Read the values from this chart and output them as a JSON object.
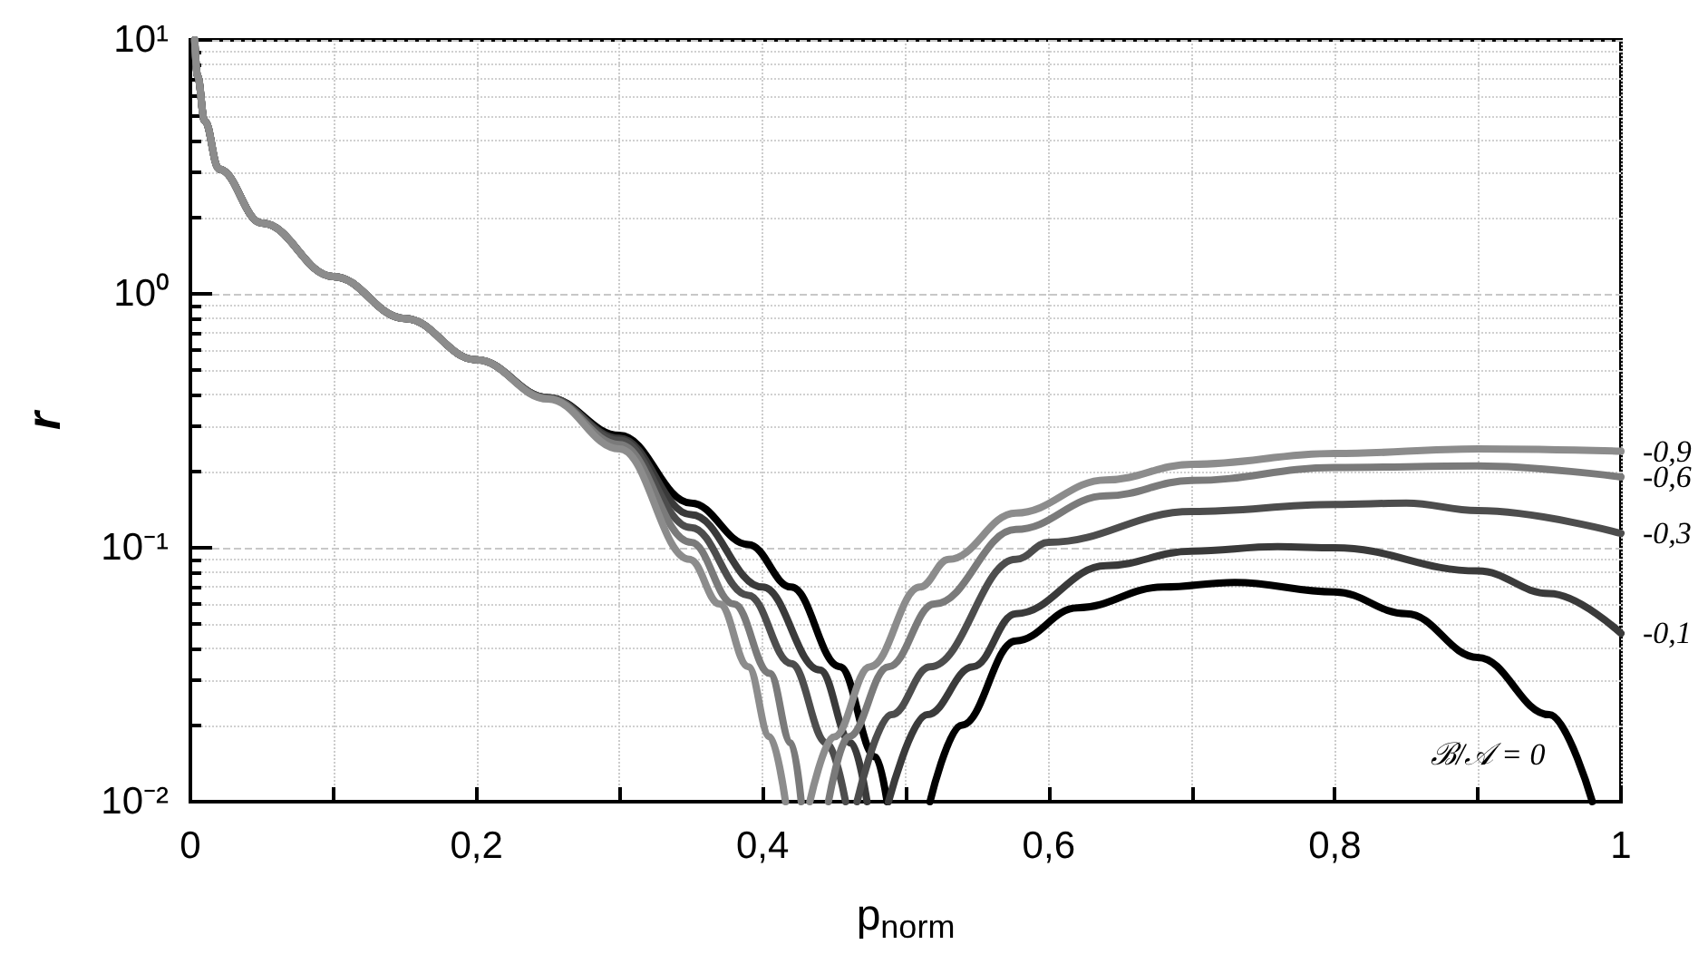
{
  "chart_data": {
    "type": "line",
    "xlabel": "p$_{norm}$",
    "ylabel": "r",
    "log": "y",
    "grid": true,
    "legend": false,
    "marker": "none",
    "line_style": "solid",
    "xlim": [
      0,
      1
    ],
    "ylim": [
      0.01,
      10
    ],
    "xticks": [
      {
        "value": 0,
        "label": "0"
      },
      {
        "value": 0.1,
        "label": null
      },
      {
        "value": 0.2,
        "label": "0,2"
      },
      {
        "value": 0.3,
        "label": null
      },
      {
        "value": 0.4,
        "label": "0,4"
      },
      {
        "value": 0.5,
        "label": null
      },
      {
        "value": 0.6,
        "label": "0,6"
      },
      {
        "value": 0.7,
        "label": null
      },
      {
        "value": 0.8,
        "label": "0,8"
      },
      {
        "value": 0.9,
        "label": null
      },
      {
        "value": 1,
        "label": "1"
      }
    ],
    "yticks": [
      {
        "value": 0.01,
        "label": "10⁻²"
      },
      {
        "value": 0.1,
        "label": "10⁻¹"
      },
      {
        "value": 1,
        "label": "10⁰"
      },
      {
        "value": 10,
        "label": "10¹"
      }
    ],
    "series": [
      {
        "name": "-0,9",
        "color": "#8c8c8c",
        "x": [
          0.003,
          0.005,
          0.01,
          0.02,
          0.05,
          0.1,
          0.15,
          0.2,
          0.25,
          0.3,
          0.349,
          0.37,
          0.39,
          0.405,
          0.416,
          0.425,
          0.433,
          0.45,
          0.475,
          0.51,
          0.53,
          0.577,
          0.64,
          0.7,
          0.8,
          0.9,
          1
        ],
        "values": [
          10,
          7.2,
          4.8,
          3.1,
          1.9,
          1.17,
          0.8,
          0.55,
          0.385,
          0.245,
          0.09,
          0.06,
          0.034,
          0.018,
          0.01,
          null,
          0.01,
          0.018,
          0.034,
          0.07,
          0.09,
          0.137,
          0.185,
          0.213,
          0.235,
          0.245,
          0.24
        ]
      },
      {
        "name": "-0,6",
        "color": "#7a7a7a",
        "x": [
          0.003,
          0.005,
          0.01,
          0.02,
          0.05,
          0.1,
          0.15,
          0.2,
          0.25,
          0.3,
          0.35,
          0.38,
          0.405,
          0.42,
          0.427,
          0.436,
          0.446,
          0.46,
          0.488,
          0.52,
          0.577,
          0.64,
          0.7,
          0.8,
          0.9,
          1
        ],
        "values": [
          10,
          7.2,
          4.8,
          3.1,
          1.9,
          1.17,
          0.8,
          0.55,
          0.387,
          0.255,
          0.105,
          0.06,
          0.032,
          0.017,
          0.01,
          null,
          0.01,
          0.018,
          0.034,
          0.06,
          0.118,
          0.16,
          0.184,
          0.207,
          0.21,
          0.19
        ]
      },
      {
        "name": "-0,3",
        "color": "#4d4d4d",
        "x": [
          0.003,
          0.005,
          0.01,
          0.02,
          0.05,
          0.1,
          0.15,
          0.2,
          0.25,
          0.3,
          0.35,
          0.39,
          0.42,
          0.445,
          0.458,
          0.462,
          0.466,
          0.49,
          0.517,
          0.577,
          0.6,
          0.7,
          0.8,
          0.85,
          0.9,
          1
        ],
        "values": [
          10,
          7.2,
          4.8,
          3.1,
          1.9,
          1.17,
          0.8,
          0.55,
          0.389,
          0.265,
          0.12,
          0.065,
          0.035,
          0.017,
          0.01,
          null,
          0.01,
          0.022,
          0.034,
          0.09,
          0.105,
          0.139,
          0.148,
          0.15,
          0.14,
          0.114
        ]
      },
      {
        "name": "-0,1",
        "color": "#3a3a3a",
        "x": [
          0.003,
          0.005,
          0.01,
          0.02,
          0.05,
          0.1,
          0.15,
          0.2,
          0.25,
          0.3,
          0.35,
          0.4,
          0.44,
          0.462,
          0.473,
          0.48,
          0.488,
          0.515,
          0.547,
          0.577,
          0.64,
          0.7,
          0.76,
          0.8,
          0.9,
          0.95,
          1
        ],
        "values": [
          10,
          7.2,
          4.8,
          3.1,
          1.9,
          1.17,
          0.8,
          0.55,
          0.39,
          0.27,
          0.135,
          0.07,
          0.033,
          0.017,
          0.01,
          null,
          0.01,
          0.022,
          0.034,
          0.055,
          0.085,
          0.097,
          0.101,
          0.1,
          0.081,
          0.066,
          0.046
        ]
      },
      {
        "name": "ℬ/𝒜 = 0",
        "color": "#000000",
        "x": [
          0.003,
          0.005,
          0.01,
          0.02,
          0.05,
          0.1,
          0.15,
          0.2,
          0.25,
          0.3,
          0.35,
          0.39,
          0.42,
          0.454,
          0.479,
          0.487,
          0.5,
          0.517,
          0.539,
          0.577,
          0.62,
          0.68,
          0.73,
          0.8,
          0.85,
          0.9,
          0.95,
          0.98
        ],
        "values": [
          10,
          7.2,
          4.8,
          3.1,
          1.9,
          1.17,
          0.8,
          0.55,
          0.39,
          0.277,
          0.15,
          0.103,
          0.07,
          0.034,
          0.015,
          0.01,
          null,
          0.01,
          0.02,
          0.043,
          0.058,
          0.07,
          0.073,
          0.067,
          0.055,
          0.037,
          0.022,
          0.01
        ]
      }
    ]
  }
}
